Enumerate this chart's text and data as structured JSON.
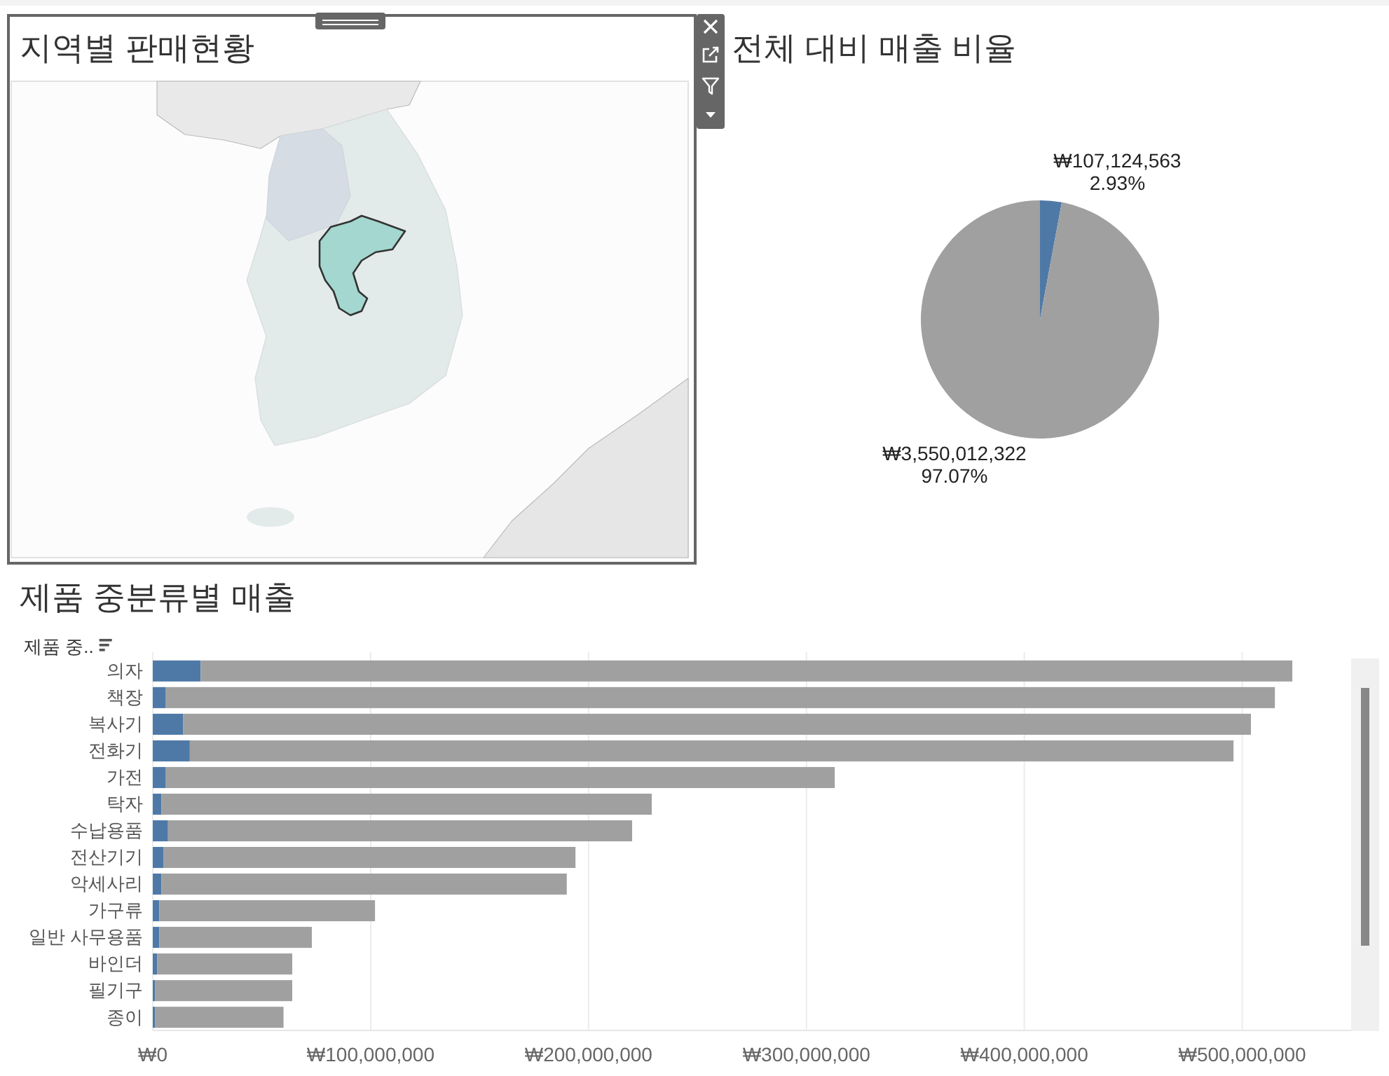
{
  "chart_data": [
    {
      "type": "other",
      "title": "지역별 판매현황"
    },
    {
      "type": "pie",
      "title": "전체 대비 매출 비율",
      "categories": [
        null,
        null
      ],
      "values": [
        107124563,
        3550012322
      ],
      "colors": [
        "#4e79a7",
        "#a0a0a0"
      ],
      "value_labels": [
        "₩107,124,563\n2.93%",
        "₩3,550,012,322\n97.07%"
      ]
    },
    {
      "type": "bar",
      "orientation": "horizontal",
      "stacked": true,
      "title": "제품 중분류별 매출",
      "ylabel": "제품 중..",
      "categories": [
        "의자",
        "책장",
        "복사기",
        "전화기",
        "가전",
        "탁자",
        "수납용품",
        "전산기기",
        "악세사리",
        "가구류",
        "일반 사무용품",
        "바인더",
        "필기구",
        "종이"
      ],
      "series": [
        {
          "color": "#4e79a7",
          "values": [
            22000000,
            6000000,
            14000000,
            17000000,
            6000000,
            4000000,
            7000000,
            5000000,
            4000000,
            3000000,
            3000000,
            2000000,
            1000000,
            1000000
          ]
        },
        {
          "color": "#a0a0a0",
          "values": [
            501000000,
            509000000,
            490000000,
            479000000,
            307000000,
            225000000,
            213000000,
            189000000,
            186000000,
            99000000,
            70000000,
            62000000,
            63000000,
            59000000
          ]
        }
      ],
      "xlim": [
        0,
        550000000
      ],
      "xticks": [
        {
          "value": 0,
          "label": "₩0"
        },
        {
          "value": 100000000,
          "label": "₩100,000,000"
        },
        {
          "value": 200000000,
          "label": "₩200,000,000"
        },
        {
          "value": 300000000,
          "label": "₩300,000,000"
        },
        {
          "value": 400000000,
          "label": "₩400,000,000"
        },
        {
          "value": 500000000,
          "label": "₩500,000,000"
        }
      ],
      "grid": "x"
    }
  ]
}
